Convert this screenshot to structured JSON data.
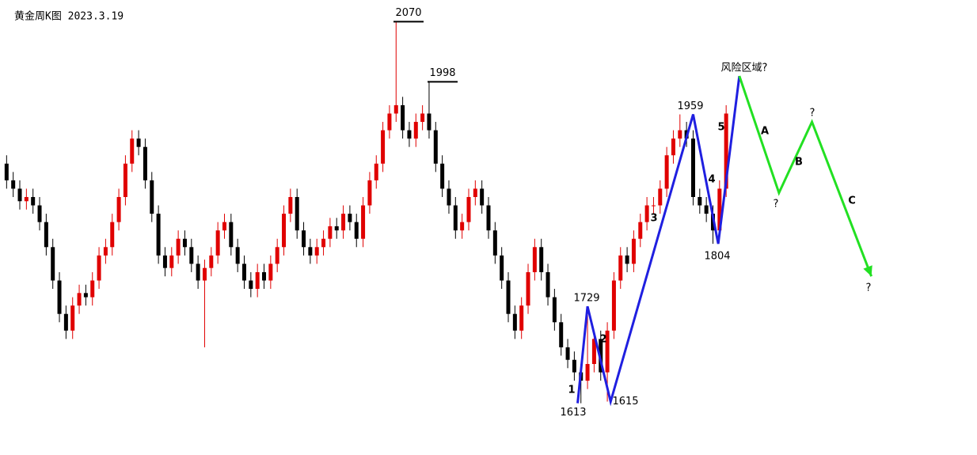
{
  "chart_data": {
    "type": "candlestick",
    "title": "黄金周K图 2023.3.19",
    "xlim": [
      -1,
      147
    ],
    "ylim": [
      1551,
      2096
    ],
    "up_color": "#e00000",
    "down_color": "#000000",
    "open": [
      1900,
      1880,
      1870,
      1855,
      1860,
      1850,
      1830,
      1800,
      1760,
      1720,
      1700,
      1730,
      1745,
      1740,
      1760,
      1790,
      1800,
      1830,
      1860,
      1900,
      1930,
      1920,
      1880,
      1840,
      1790,
      1775,
      1790,
      1810,
      1800,
      1780,
      1760,
      1775,
      1790,
      1820,
      1830,
      1800,
      1780,
      1760,
      1750,
      1770,
      1760,
      1780,
      1800,
      1840,
      1860,
      1820,
      1800,
      1790,
      1800,
      1810,
      1825,
      1820,
      1840,
      1830,
      1810,
      1850,
      1880,
      1900,
      1940,
      1960,
      1970,
      1940,
      1930,
      1950,
      1960,
      1940,
      1900,
      1870,
      1850,
      1820,
      1830,
      1860,
      1870,
      1850,
      1820,
      1790,
      1760,
      1720,
      1700,
      1730,
      1770,
      1800,
      1770,
      1740,
      1710,
      1680,
      1665,
      1650,
      1640,
      1660,
      1690,
      1650,
      1700,
      1760,
      1790,
      1780,
      1810,
      1830,
      1850,
      1850,
      1870,
      1910,
      1930,
      1940,
      1930,
      1860,
      1850,
      1840,
      1820,
      1870
    ],
    "high": [
      1910,
      1890,
      1880,
      1870,
      1870,
      1860,
      1840,
      1810,
      1770,
      1730,
      1740,
      1755,
      1755,
      1770,
      1800,
      1810,
      1840,
      1870,
      1910,
      1940,
      1940,
      1930,
      1890,
      1850,
      1800,
      1800,
      1820,
      1820,
      1810,
      1790,
      1785,
      1800,
      1830,
      1840,
      1840,
      1810,
      1790,
      1770,
      1780,
      1780,
      1790,
      1810,
      1850,
      1870,
      1870,
      1830,
      1810,
      1810,
      1820,
      1835,
      1835,
      1850,
      1850,
      1840,
      1860,
      1890,
      1910,
      1950,
      1970,
      2070,
      1980,
      1950,
      1960,
      1970,
      1998,
      1950,
      1910,
      1880,
      1860,
      1840,
      1870,
      1880,
      1880,
      1860,
      1830,
      1800,
      1770,
      1730,
      1740,
      1780,
      1810,
      1810,
      1780,
      1750,
      1720,
      1690,
      1675,
      1660,
      1729,
      1700,
      1700,
      1710,
      1770,
      1800,
      1800,
      1820,
      1840,
      1860,
      1860,
      1880,
      1920,
      1940,
      1959,
      1950,
      1940,
      1870,
      1860,
      1850,
      1880,
      1970
    ],
    "low": [
      1870,
      1860,
      1845,
      1845,
      1840,
      1820,
      1790,
      1750,
      1710,
      1690,
      1690,
      1720,
      1730,
      1730,
      1750,
      1780,
      1790,
      1820,
      1850,
      1890,
      1910,
      1870,
      1830,
      1780,
      1765,
      1765,
      1780,
      1790,
      1770,
      1750,
      1680,
      1765,
      1780,
      1810,
      1790,
      1770,
      1750,
      1740,
      1740,
      1750,
      1750,
      1770,
      1790,
      1830,
      1810,
      1790,
      1780,
      1780,
      1790,
      1800,
      1810,
      1810,
      1820,
      1800,
      1800,
      1840,
      1870,
      1890,
      1930,
      1950,
      1930,
      1920,
      1920,
      1940,
      1930,
      1890,
      1860,
      1840,
      1810,
      1810,
      1820,
      1850,
      1840,
      1810,
      1780,
      1750,
      1710,
      1690,
      1690,
      1720,
      1760,
      1760,
      1730,
      1700,
      1670,
      1655,
      1640,
      1613,
      1630,
      1650,
      1640,
      1615,
      1690,
      1750,
      1770,
      1770,
      1800,
      1820,
      1840,
      1840,
      1860,
      1900,
      1920,
      1920,
      1850,
      1840,
      1830,
      1804,
      1810,
      1860
    ],
    "close": [
      1880,
      1870,
      1855,
      1860,
      1850,
      1830,
      1800,
      1760,
      1720,
      1700,
      1730,
      1745,
      1740,
      1760,
      1790,
      1800,
      1830,
      1860,
      1900,
      1930,
      1920,
      1880,
      1840,
      1790,
      1775,
      1790,
      1810,
      1800,
      1780,
      1760,
      1775,
      1790,
      1820,
      1830,
      1800,
      1780,
      1760,
      1750,
      1770,
      1760,
      1780,
      1800,
      1840,
      1860,
      1820,
      1800,
      1790,
      1800,
      1810,
      1825,
      1820,
      1840,
      1830,
      1810,
      1850,
      1880,
      1900,
      1940,
      1960,
      1970,
      1940,
      1930,
      1950,
      1960,
      1940,
      1900,
      1870,
      1850,
      1820,
      1830,
      1860,
      1870,
      1850,
      1820,
      1790,
      1760,
      1720,
      1700,
      1730,
      1770,
      1800,
      1770,
      1740,
      1710,
      1680,
      1665,
      1650,
      1640,
      1660,
      1690,
      1650,
      1700,
      1760,
      1790,
      1780,
      1810,
      1830,
      1850,
      1850,
      1870,
      1910,
      1930,
      1940,
      1930,
      1860,
      1850,
      1840,
      1820,
      1870,
      1960
    ],
    "wave_count": {
      "color": "#1f1fe0",
      "x": [
        86.5,
        88,
        91.5,
        104,
        107.8,
        111
      ],
      "y": [
        1613,
        1729,
        1615,
        1959,
        1804,
        2005
      ]
    },
    "projection": {
      "color": "#22e022",
      "x": [
        111,
        117,
        122,
        131
      ],
      "y": [
        2005,
        1865,
        1950,
        1765
      ]
    },
    "price_labels": [
      2070,
      1998,
      1959,
      1729,
      1613,
      1615,
      1804
    ],
    "wave_labels": [
      "1",
      "2",
      "3",
      "4",
      "5",
      "A",
      "B",
      "C"
    ],
    "question_marks": [
      "?",
      "?",
      "?",
      "?"
    ],
    "risk_label": "风险区域?"
  }
}
